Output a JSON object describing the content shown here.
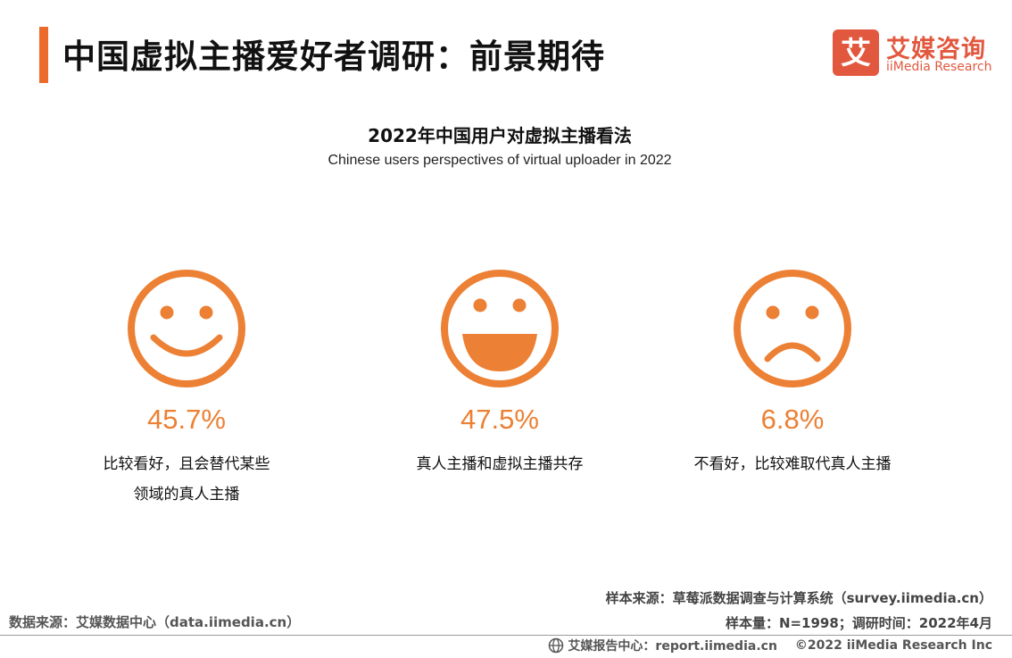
{
  "header": {
    "title": "中国虚拟主播爱好者调研：前景期待",
    "logo_cn": "艾媒咨询",
    "logo_en": "iiMedia Research",
    "logo_mark_char": "艾"
  },
  "colors": {
    "accent": "#ec6a2c",
    "face": "#ec8034",
    "logo": "#e2583e"
  },
  "chart_data": {
    "type": "pictogram",
    "title": "2022年中国用户对虚拟主播看法",
    "subtitle": "Chinese users perspectives of virtual uploader in 2022",
    "unit": "%",
    "items": [
      {
        "icon": "smile-face-icon",
        "value": 45.7,
        "label": "45.7%",
        "description": [
          "比较看好，且会替代某些",
          "领域的真人主播"
        ]
      },
      {
        "icon": "grin-face-icon",
        "value": 47.5,
        "label": "47.5%",
        "description": [
          "真人主播和虚拟主播共存"
        ]
      },
      {
        "icon": "frown-face-icon",
        "value": 6.8,
        "label": "6.8%",
        "description": [
          "不看好，比较难取代真人主播"
        ]
      }
    ]
  },
  "source": {
    "data_source": "数据来源：艾媒数据中心（data.iimedia.cn）",
    "sample_source": "样本来源：草莓派数据调查与计算系统（survey.iimedia.cn）",
    "sample_size": "样本量：N=1998；调研时间：2022年4月"
  },
  "footer": {
    "center": "艾媒报告中心：report.iimedia.cn",
    "copyright": "©2022 iiMedia Research Inc"
  }
}
